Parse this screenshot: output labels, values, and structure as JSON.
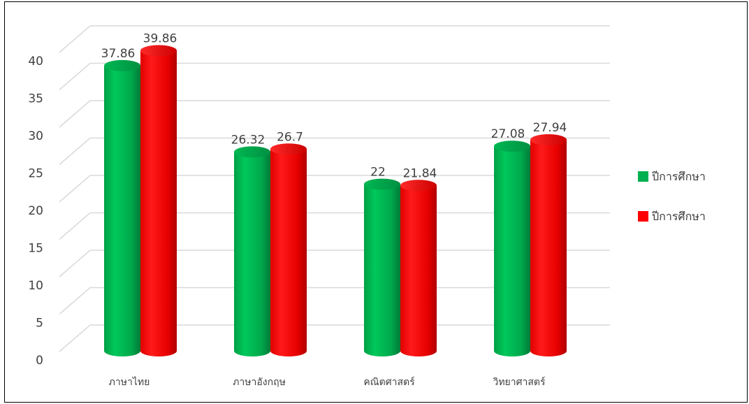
{
  "chart_data": {
    "type": "bar",
    "style": "3d-cylinder",
    "categories": [
      "ภาษาไทย",
      "ภาษาอังกฤษ",
      "คณิตศาสตร์",
      "วิทยาศาสตร์"
    ],
    "series": [
      {
        "name": "ปีการศึกษา",
        "color": "#00b050",
        "values": [
          37.86,
          26.32,
          22,
          27.08
        ],
        "labels": [
          "37.86",
          "26.32",
          "22",
          "27.08"
        ]
      },
      {
        "name": "ปีการศึกษา",
        "color": "#ff0000",
        "values": [
          39.86,
          26.7,
          21.84,
          27.94
        ],
        "labels": [
          "39.86",
          "26.7",
          "21.84",
          "27.94"
        ]
      }
    ],
    "ylim": [
      0,
      40
    ],
    "yticks": [
      "0",
      "5",
      "10",
      "15",
      "20",
      "25",
      "30",
      "35",
      "40"
    ],
    "grid": true,
    "legend_position": "right",
    "gridline_color": "#d9d9d9"
  }
}
